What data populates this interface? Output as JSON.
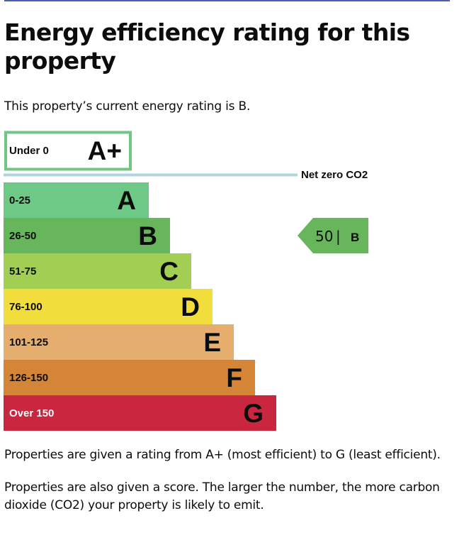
{
  "page": {
    "title": "Energy efficiency rating for this property",
    "current_rating_text": "This property’s current energy rating is B.",
    "notes": [
      "Properties are given a rating from A+ (most efficient) to G (least efficient).",
      "Properties are also given a score. The larger the number, the more carbon dioxide (CO2) your property is likely to emit."
    ]
  },
  "chart_data": {
    "type": "bar",
    "net_zero": {
      "range": "Under 0",
      "letter": "A+",
      "label": "Net zero CO2",
      "color": "#72c585"
    },
    "bands": [
      {
        "range": "0-25",
        "letter": "A",
        "color": "#6fc986"
      },
      {
        "range": "26-50",
        "letter": "B",
        "color": "#67b65c"
      },
      {
        "range": "51-75",
        "letter": "C",
        "color": "#a2cf53"
      },
      {
        "range": "76-100",
        "letter": "D",
        "color": "#f1dd3b"
      },
      {
        "range": "101-125",
        "letter": "E",
        "color": "#e5ae6f"
      },
      {
        "range": "126-150",
        "letter": "F",
        "color": "#d48636"
      },
      {
        "range": "Over 150",
        "letter": "G",
        "color": "#c9273f"
      }
    ],
    "current": {
      "score": 50,
      "separator": "|",
      "letter": "B",
      "color": "#67b65c"
    }
  }
}
